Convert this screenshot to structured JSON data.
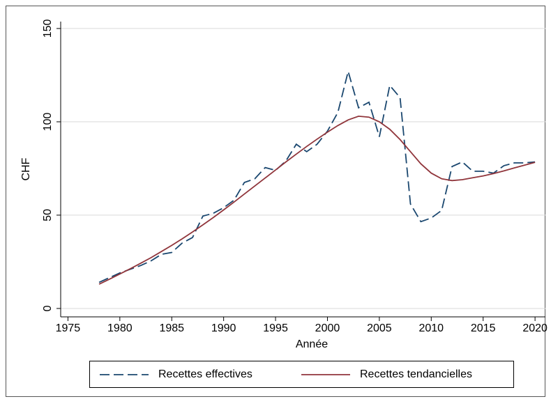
{
  "chart_data": {
    "type": "line",
    "x_label": "Année",
    "y_label": "CHF",
    "x": [
      1978,
      1979,
      1980,
      1981,
      1982,
      1983,
      1984,
      1985,
      1986,
      1987,
      1988,
      1989,
      1990,
      1991,
      1992,
      1993,
      1994,
      1995,
      1996,
      1997,
      1998,
      1999,
      2000,
      2001,
      2002,
      2003,
      2004,
      2005,
      2006,
      2007,
      2008,
      2009,
      2010,
      2011,
      2012,
      2013,
      2014,
      2015,
      2016,
      2017,
      2018,
      2019,
      2020
    ],
    "series": [
      {
        "name": "Recettes effectives",
        "color": "#1a476f",
        "dashed": true,
        "values": [
          14,
          16.5,
          19,
          21,
          23,
          25.5,
          29,
          30,
          35,
          38,
          49.5,
          51,
          54,
          58,
          67.5,
          69.5,
          75.5,
          74,
          79,
          88,
          84,
          88,
          95,
          105,
          127,
          107.5,
          110.5,
          92,
          119.5,
          113,
          56,
          46.5,
          48.5,
          52.5,
          76,
          78.5,
          73.5,
          73.5,
          72.5,
          76.5,
          78,
          78,
          78.5
        ]
      },
      {
        "name": "Recettes tendancielles",
        "color": "#90353b",
        "dashed": false,
        "values": [
          13,
          15.7,
          18.5,
          21.3,
          24.2,
          27.2,
          30.5,
          33.8,
          37.3,
          41,
          44.8,
          48.7,
          52.8,
          57,
          61.3,
          65.6,
          69.9,
          74.2,
          78.5,
          82.7,
          86.8,
          90.7,
          94.5,
          98,
          101,
          103,
          102.5,
          100,
          96,
          90.5,
          84,
          77.5,
          72.5,
          69.5,
          68.5,
          69,
          70,
          71,
          72.3,
          73.7,
          75.3,
          76.8,
          78.3
        ]
      }
    ],
    "xlim": [
      1974.3,
      2021
    ],
    "xticks": [
      1975,
      1980,
      1985,
      1990,
      1995,
      2000,
      2005,
      2010,
      2015,
      2020
    ],
    "ylim": [
      -4.5,
      153.7
    ],
    "yticks": [
      0,
      50,
      100,
      150
    ],
    "grid": true
  }
}
